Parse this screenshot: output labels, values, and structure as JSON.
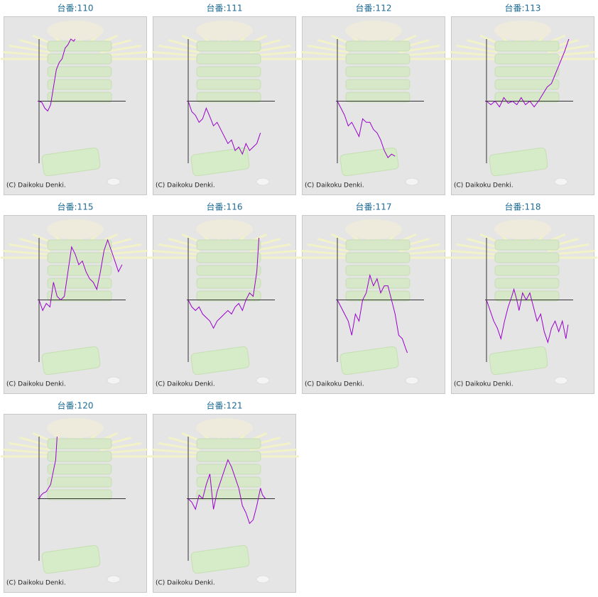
{
  "chart_data": [
    {
      "type": "line",
      "title": "台番:110",
      "annotation": "(C) Daikoku Denki.",
      "color": "#9900cc",
      "xlim": [
        0,
        120
      ],
      "ylim": [
        -88,
        88
      ],
      "x": [
        0,
        4,
        8,
        12,
        16,
        20,
        24,
        28,
        32,
        36,
        40,
        44,
        48,
        50
      ],
      "values": [
        0,
        -2,
        -10,
        -14,
        -5,
        20,
        45,
        55,
        60,
        75,
        80,
        88,
        85,
        88
      ]
    },
    {
      "type": "line",
      "title": "台番:111",
      "annotation": "(C) Daikoku Denki.",
      "color": "#9900cc",
      "xlim": [
        0,
        120
      ],
      "ylim": [
        -88,
        88
      ],
      "x": [
        0,
        5,
        10,
        15,
        20,
        25,
        30,
        35,
        40,
        45,
        50,
        55,
        60,
        65,
        70,
        75,
        80,
        85,
        90,
        95,
        100
      ],
      "values": [
        0,
        -15,
        -20,
        -30,
        -25,
        -10,
        -22,
        -35,
        -30,
        -40,
        -50,
        -60,
        -55,
        -70,
        -65,
        -75,
        -60,
        -70,
        -65,
        -60,
        -45
      ]
    },
    {
      "type": "line",
      "title": "台番:112",
      "annotation": "(C) Daikoku Denki.",
      "color": "#9900cc",
      "xlim": [
        0,
        120
      ],
      "ylim": [
        -88,
        88
      ],
      "x": [
        0,
        5,
        10,
        15,
        20,
        25,
        30,
        35,
        40,
        45,
        50,
        55,
        60,
        65,
        70,
        75,
        80
      ],
      "values": [
        0,
        -10,
        -20,
        -35,
        -30,
        -40,
        -50,
        -25,
        -30,
        -30,
        -40,
        -45,
        -55,
        -70,
        -80,
        -75,
        -78
      ]
    },
    {
      "type": "line",
      "title": "台番:113",
      "annotation": "(C) Daikoku Denki.",
      "color": "#9900cc",
      "xlim": [
        0,
        120
      ],
      "ylim": [
        -88,
        88
      ],
      "x": [
        0,
        6,
        12,
        18,
        24,
        30,
        36,
        42,
        48,
        54,
        60,
        66,
        72,
        78,
        84,
        90,
        96,
        102,
        108,
        114
      ],
      "values": [
        0,
        -5,
        0,
        -8,
        5,
        -3,
        0,
        -5,
        5,
        -5,
        0,
        -8,
        0,
        10,
        20,
        25,
        40,
        55,
        70,
        88
      ]
    },
    {
      "type": "line",
      "title": "台番:115",
      "annotation": "(C) Daikoku Denki.",
      "color": "#9900cc",
      "xlim": [
        0,
        120
      ],
      "ylim": [
        -88,
        88
      ],
      "x": [
        0,
        5,
        10,
        15,
        20,
        25,
        30,
        35,
        40,
        45,
        50,
        55,
        60,
        65,
        70,
        75,
        80,
        85,
        90,
        95,
        100,
        105,
        110,
        115
      ],
      "values": [
        0,
        -15,
        -5,
        -10,
        25,
        5,
        0,
        5,
        40,
        75,
        65,
        50,
        55,
        40,
        30,
        25,
        15,
        40,
        70,
        85,
        70,
        55,
        40,
        50
      ]
    },
    {
      "type": "line",
      "title": "台番:116",
      "annotation": "(C) Daikoku Denki.",
      "color": "#9900cc",
      "xlim": [
        0,
        120
      ],
      "ylim": [
        -88,
        88
      ],
      "x": [
        0,
        5,
        10,
        15,
        20,
        25,
        30,
        35,
        40,
        45,
        50,
        55,
        60,
        65,
        70,
        75,
        80,
        85,
        90,
        95,
        98
      ],
      "values": [
        0,
        -10,
        -15,
        -10,
        -20,
        -25,
        -30,
        -40,
        -30,
        -25,
        -20,
        -15,
        -20,
        -10,
        -5,
        -15,
        0,
        10,
        5,
        40,
        88
      ]
    },
    {
      "type": "line",
      "title": "台番:117",
      "annotation": "(C) Daikoku Denki.",
      "color": "#9900cc",
      "xlim": [
        0,
        120
      ],
      "ylim": [
        -88,
        88
      ],
      "x": [
        0,
        5,
        10,
        15,
        20,
        25,
        30,
        35,
        40,
        45,
        50,
        55,
        60,
        65,
        70,
        75,
        80,
        85,
        90,
        95,
        97
      ],
      "values": [
        0,
        -10,
        -20,
        -30,
        -50,
        -20,
        -30,
        0,
        10,
        35,
        20,
        30,
        10,
        20,
        20,
        0,
        -20,
        -50,
        -55,
        -70,
        -75
      ]
    },
    {
      "type": "line",
      "title": "台番:118",
      "annotation": "(C) Daikoku Denki.",
      "color": "#9900cc",
      "xlim": [
        0,
        120
      ],
      "ylim": [
        -88,
        88
      ],
      "x": [
        0,
        5,
        10,
        15,
        20,
        25,
        30,
        35,
        38,
        42,
        45,
        50,
        55,
        60,
        65,
        70,
        75,
        80,
        85,
        90,
        95,
        100,
        105,
        110,
        113
      ],
      "values": [
        0,
        -15,
        -30,
        -40,
        -55,
        -30,
        -10,
        5,
        15,
        0,
        -15,
        10,
        0,
        10,
        -10,
        -30,
        -20,
        -45,
        -60,
        -40,
        -30,
        -45,
        -30,
        -55,
        -35
      ]
    },
    {
      "type": "line",
      "title": "台番:120",
      "annotation": "(C) Daikoku Denki.",
      "color": "#9900cc",
      "xlim": [
        0,
        120
      ],
      "ylim": [
        -88,
        88
      ],
      "x": [
        0,
        3,
        6,
        10,
        13,
        16,
        20,
        23,
        25
      ],
      "values": [
        0,
        5,
        8,
        10,
        15,
        20,
        40,
        55,
        88
      ]
    },
    {
      "type": "line",
      "title": "台番:121",
      "annotation": "(C) Daikoku Denki.",
      "color": "#9900cc",
      "xlim": [
        0,
        120
      ],
      "ylim": [
        -88,
        88
      ],
      "x": [
        0,
        5,
        10,
        15,
        20,
        25,
        30,
        35,
        40,
        45,
        50,
        55,
        60,
        65,
        70,
        75,
        80,
        85,
        90,
        95,
        100,
        103,
        107
      ],
      "values": [
        0,
        -5,
        -15,
        5,
        0,
        20,
        35,
        -15,
        10,
        25,
        40,
        55,
        45,
        30,
        15,
        -10,
        -20,
        -35,
        -30,
        -10,
        15,
        5,
        0
      ]
    }
  ]
}
